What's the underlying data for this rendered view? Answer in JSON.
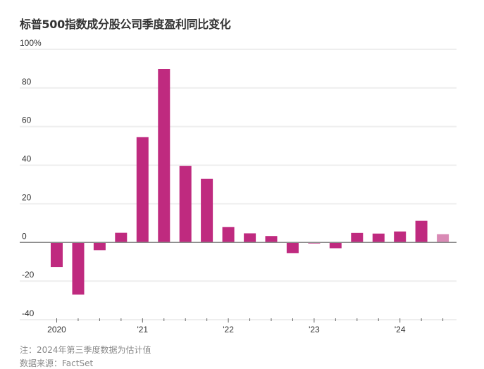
{
  "chart_data": {
    "type": "bar",
    "title": "标普500指数成分股公司季度盈利同比变化",
    "xlabel": "",
    "ylabel": "",
    "ylim": [
      -40,
      100
    ],
    "yticks": [
      {
        "value": 100,
        "label": "100%"
      },
      {
        "value": 80,
        "label": "80"
      },
      {
        "value": 60,
        "label": "60"
      },
      {
        "value": 40,
        "label": "40"
      },
      {
        "value": 20,
        "label": "20"
      },
      {
        "value": 0,
        "label": "0"
      },
      {
        "value": -20,
        "label": "-20"
      },
      {
        "value": -40,
        "label": "-40"
      }
    ],
    "xtick_labels": [
      {
        "index": 0,
        "label": "2020"
      },
      {
        "index": 4,
        "label": "'21"
      },
      {
        "index": 8,
        "label": "'22"
      },
      {
        "index": 12,
        "label": "'23"
      },
      {
        "index": 16,
        "label": "'24"
      }
    ],
    "categories": [
      "2020 Q1",
      "2020 Q2",
      "2020 Q3",
      "2020 Q4",
      "2021 Q1",
      "2021 Q2",
      "2021 Q3",
      "2021 Q4",
      "2022 Q1",
      "2022 Q2",
      "2022 Q3",
      "2022 Q4",
      "2023 Q1",
      "2023 Q2",
      "2023 Q3",
      "2023 Q4",
      "2024 Q1",
      "2024 Q2",
      "2024 Q3"
    ],
    "values": [
      -12.7,
      -27.0,
      -4.0,
      5.0,
      54.5,
      89.8,
      39.6,
      33.0,
      8.0,
      4.7,
      3.3,
      -5.5,
      -0.5,
      -3.0,
      4.9,
      4.6,
      5.7,
      11.2,
      4.3
    ],
    "estimated": [
      false,
      false,
      false,
      false,
      false,
      false,
      false,
      false,
      false,
      false,
      false,
      false,
      false,
      false,
      false,
      false,
      false,
      false,
      true
    ],
    "grid": true,
    "colors": {
      "bar": "#bf2a7f",
      "estimate": "#d98ab5",
      "grid": "#eeeeee",
      "axis": "#888888"
    }
  },
  "notes": {
    "note": "注：2024年第三季度数据为估计值",
    "source": "数据来源：FactSet"
  }
}
